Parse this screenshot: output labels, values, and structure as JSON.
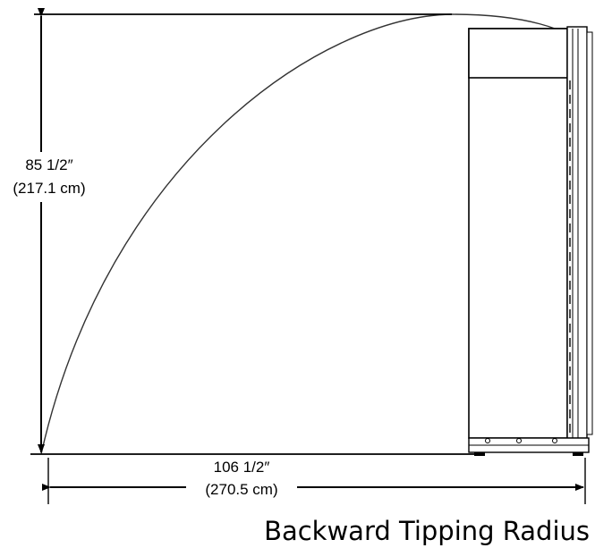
{
  "height_dimension": {
    "imperial": "85 1/2″",
    "metric": "(217.1 cm)"
  },
  "width_dimension": {
    "imperial": "106 1/2″",
    "metric": "(270.5 cm)"
  },
  "caption": "Backward Tipping Radius",
  "colors": {
    "line": "#000000",
    "arc": "#333333",
    "background": "#ffffff"
  }
}
